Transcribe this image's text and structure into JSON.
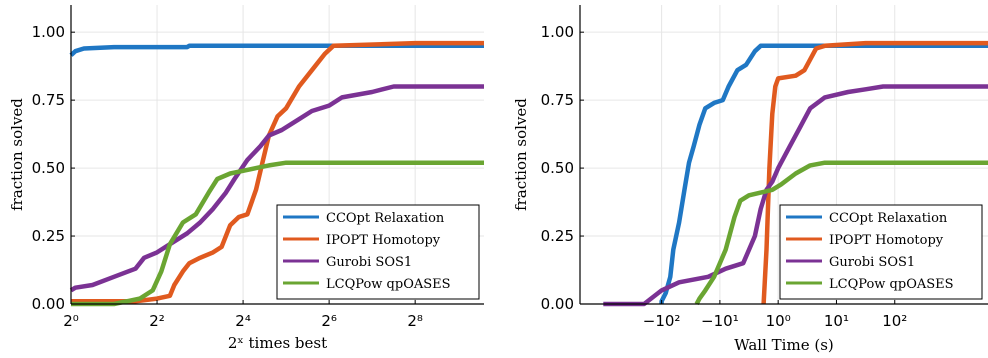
{
  "chart_data": [
    {
      "type": "line",
      "xlabel": "2ˣ times best",
      "ylabel": "fraction solved",
      "xscale": "log2",
      "xlim": [
        0,
        9.6
      ],
      "ylim": [
        0,
        1.1
      ],
      "xticks": [
        {
          "v": 0,
          "label": "2⁰"
        },
        {
          "v": 2,
          "label": "2²"
        },
        {
          "v": 4,
          "label": "2⁴"
        },
        {
          "v": 6,
          "label": "2⁶"
        },
        {
          "v": 8,
          "label": "2⁸"
        }
      ],
      "yticks": [
        {
          "v": 0,
          "label": "0.00"
        },
        {
          "v": 0.25,
          "label": "0.25"
        },
        {
          "v": 0.5,
          "label": "0.50"
        },
        {
          "v": 0.75,
          "label": "0.75"
        },
        {
          "v": 1,
          "label": "1.00"
        }
      ],
      "grid": true,
      "legend_position": "bottom-right",
      "series": [
        {
          "name": "CCOpt Relaxation",
          "color": "#1f77c4",
          "points": [
            [
              0,
              0.915
            ],
            [
              0.1,
              0.93
            ],
            [
              0.3,
              0.94
            ],
            [
              1.0,
              0.945
            ],
            [
              2.7,
              0.945
            ],
            [
              2.75,
              0.95
            ],
            [
              9.6,
              0.95
            ]
          ]
        },
        {
          "name": "IPOPT Homotopy",
          "color": "#e05a1f",
          "points": [
            [
              0,
              0.01
            ],
            [
              1.5,
              0.01
            ],
            [
              2.0,
              0.02
            ],
            [
              2.3,
              0.03
            ],
            [
              2.4,
              0.07
            ],
            [
              2.6,
              0.12
            ],
            [
              2.75,
              0.15
            ],
            [
              3.0,
              0.17
            ],
            [
              3.3,
              0.19
            ],
            [
              3.5,
              0.21
            ],
            [
              3.7,
              0.29
            ],
            [
              3.9,
              0.32
            ],
            [
              4.1,
              0.33
            ],
            [
              4.3,
              0.42
            ],
            [
              4.45,
              0.52
            ],
            [
              4.6,
              0.62
            ],
            [
              4.8,
              0.69
            ],
            [
              5.0,
              0.72
            ],
            [
              5.3,
              0.8
            ],
            [
              5.6,
              0.86
            ],
            [
              5.9,
              0.92
            ],
            [
              6.1,
              0.95
            ],
            [
              8.0,
              0.96
            ],
            [
              9.6,
              0.96
            ]
          ]
        },
        {
          "name": "Gurobi SOS1",
          "color": "#7b3294",
          "points": [
            [
              0,
              0.05
            ],
            [
              0.1,
              0.06
            ],
            [
              0.5,
              0.07
            ],
            [
              1.0,
              0.1
            ],
            [
              1.5,
              0.13
            ],
            [
              1.7,
              0.17
            ],
            [
              2.0,
              0.19
            ],
            [
              2.3,
              0.22
            ],
            [
              2.7,
              0.26
            ],
            [
              3.0,
              0.3
            ],
            [
              3.3,
              0.35
            ],
            [
              3.6,
              0.41
            ],
            [
              3.8,
              0.46
            ],
            [
              4.1,
              0.53
            ],
            [
              4.4,
              0.58
            ],
            [
              4.6,
              0.62
            ],
            [
              4.9,
              0.64
            ],
            [
              5.3,
              0.68
            ],
            [
              5.6,
              0.71
            ],
            [
              6.0,
              0.73
            ],
            [
              6.3,
              0.76
            ],
            [
              7.0,
              0.78
            ],
            [
              7.5,
              0.8
            ],
            [
              9.6,
              0.8
            ]
          ]
        },
        {
          "name": "LCQPow qpOASES",
          "color": "#6aa532",
          "points": [
            [
              0,
              0
            ],
            [
              1.0,
              0.0
            ],
            [
              1.6,
              0.02
            ],
            [
              1.9,
              0.05
            ],
            [
              2.1,
              0.12
            ],
            [
              2.3,
              0.22
            ],
            [
              2.6,
              0.3
            ],
            [
              2.9,
              0.33
            ],
            [
              3.2,
              0.41
            ],
            [
              3.4,
              0.46
            ],
            [
              3.7,
              0.48
            ],
            [
              4.0,
              0.49
            ],
            [
              4.3,
              0.5
            ],
            [
              4.6,
              0.51
            ],
            [
              5.0,
              0.52
            ],
            [
              9.6,
              0.52
            ]
          ]
        }
      ]
    },
    {
      "type": "line",
      "xlabel": "Wall Time (s)",
      "ylabel": "fraction solved",
      "xscale": "symlog",
      "xlim": [
        -3.4,
        3.6
      ],
      "ylim": [
        0,
        1.1
      ],
      "xticks": [
        {
          "v": -2,
          "label": "−10²"
        },
        {
          "v": -1,
          "label": "−10¹"
        },
        {
          "v": 0,
          "label": "10⁰"
        },
        {
          "v": 1,
          "label": "10¹"
        },
        {
          "v": 2,
          "label": "10²"
        }
      ],
      "yticks": [
        {
          "v": 0,
          "label": "0.00"
        },
        {
          "v": 0.25,
          "label": "0.25"
        },
        {
          "v": 0.5,
          "label": "0.50"
        },
        {
          "v": 0.75,
          "label": "0.75"
        },
        {
          "v": 1,
          "label": "1.00"
        }
      ],
      "grid": true,
      "legend_position": "bottom-right",
      "series": [
        {
          "name": "CCOpt Relaxation",
          "color": "#1f77c4",
          "points": [
            [
              -2.0,
              0
            ],
            [
              -2.0,
              0.01
            ],
            [
              -1.93,
              0.04
            ],
            [
              -1.85,
              0.1
            ],
            [
              -1.8,
              0.2
            ],
            [
              -1.7,
              0.3
            ],
            [
              -1.6,
              0.43
            ],
            [
              -1.53,
              0.52
            ],
            [
              -1.45,
              0.58
            ],
            [
              -1.35,
              0.66
            ],
            [
              -1.25,
              0.72
            ],
            [
              -1.1,
              0.74
            ],
            [
              -0.95,
              0.75
            ],
            [
              -0.85,
              0.8
            ],
            [
              -0.7,
              0.86
            ],
            [
              -0.55,
              0.88
            ],
            [
              -0.4,
              0.93
            ],
            [
              -0.3,
              0.95
            ],
            [
              3.6,
              0.95
            ]
          ]
        },
        {
          "name": "IPOPT Homotopy",
          "color": "#e05a1f",
          "points": [
            [
              -0.25,
              0
            ],
            [
              -0.2,
              0.2
            ],
            [
              -0.15,
              0.5
            ],
            [
              -0.1,
              0.7
            ],
            [
              -0.05,
              0.8
            ],
            [
              0,
              0.83
            ],
            [
              0.3,
              0.84
            ],
            [
              0.45,
              0.86
            ],
            [
              0.55,
              0.9
            ],
            [
              0.65,
              0.94
            ],
            [
              0.8,
              0.95
            ],
            [
              1.5,
              0.96
            ],
            [
              3.6,
              0.96
            ]
          ]
        },
        {
          "name": "Gurobi SOS1",
          "color": "#7b3294",
          "points": [
            [
              -3.0,
              0
            ],
            [
              -2.3,
              0
            ],
            [
              -2.0,
              0.05
            ],
            [
              -1.7,
              0.08
            ],
            [
              -1.2,
              0.1
            ],
            [
              -0.9,
              0.13
            ],
            [
              -0.6,
              0.15
            ],
            [
              -0.4,
              0.25
            ],
            [
              -0.3,
              0.35
            ],
            [
              -0.2,
              0.42
            ],
            [
              -0.1,
              0.45
            ],
            [
              0.0,
              0.5
            ],
            [
              0.2,
              0.58
            ],
            [
              0.4,
              0.66
            ],
            [
              0.55,
              0.72
            ],
            [
              0.8,
              0.76
            ],
            [
              1.2,
              0.78
            ],
            [
              1.5,
              0.79
            ],
            [
              1.8,
              0.8
            ],
            [
              3.6,
              0.8
            ]
          ]
        },
        {
          "name": "LCQPow qpOASES",
          "color": "#6aa532",
          "points": [
            [
              -1.4,
              0
            ],
            [
              -1.35,
              0.02
            ],
            [
              -1.25,
              0.05
            ],
            [
              -1.1,
              0.1
            ],
            [
              -0.9,
              0.2
            ],
            [
              -0.75,
              0.32
            ],
            [
              -0.65,
              0.38
            ],
            [
              -0.5,
              0.4
            ],
            [
              -0.3,
              0.41
            ],
            [
              -0.1,
              0.42
            ],
            [
              0.05,
              0.44
            ],
            [
              0.3,
              0.48
            ],
            [
              0.55,
              0.51
            ],
            [
              0.8,
              0.52
            ],
            [
              3.6,
              0.52
            ]
          ]
        }
      ]
    }
  ]
}
